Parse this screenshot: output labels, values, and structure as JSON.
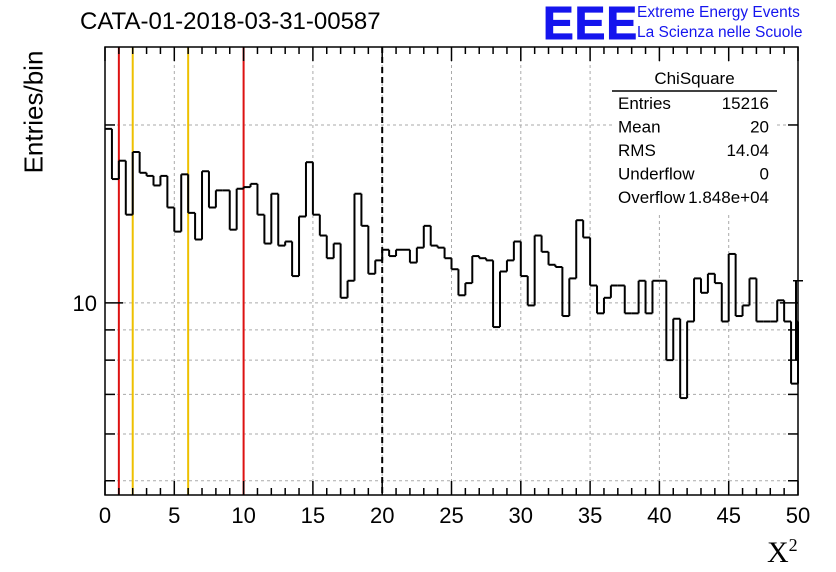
{
  "header": {
    "run_title": "CATA-01-2018-03-31-00587",
    "logo_text": "EEE",
    "logo_line1": "Extreme Energy Events",
    "logo_line2": "La Scienza nelle Scuole",
    "logo_color": "#1515ee"
  },
  "stats_box": {
    "title": "ChiSquare",
    "rows": [
      {
        "label": "Entries",
        "value": "15216"
      },
      {
        "label": "Mean",
        "value": "20"
      },
      {
        "label": "RMS",
        "value": "14.04"
      },
      {
        "label": "Underflow",
        "value": "0"
      },
      {
        "label": "Overflow",
        "value": "1.848e+04"
      }
    ]
  },
  "chart_data": {
    "type": "histogram",
    "ylabel": "Entries/bin",
    "xlabel": "X",
    "xlabel_superscript": "2",
    "xlim": [
      0,
      50
    ],
    "ylim": [
      4.73,
      27.1
    ],
    "log_y": true,
    "grid": true,
    "bin_width": 0.5,
    "x_ticks": [
      0,
      5,
      10,
      15,
      20,
      25,
      30,
      35,
      40,
      45,
      50
    ],
    "y_tick_labels": [
      {
        "value": 10,
        "label": "10"
      }
    ],
    "values": [
      19.7,
      16.2,
      17.4,
      14.1,
      18.0,
      16.6,
      16.4,
      15.8,
      16.4,
      14.5,
      13.2,
      16.5,
      14.2,
      12.8,
      16.7,
      14.5,
      15.5,
      15.5,
      13.3,
      15.6,
      15.7,
      15.9,
      14.1,
      12.6,
      15.3,
      12.5,
      12.7,
      11.1,
      14.0,
      17.3,
      14.1,
      13.0,
      11.9,
      12.6,
      10.2,
      10.9,
      15.3,
      13.5,
      11.2,
      11.8,
      12.3,
      12.0,
      12.3,
      12.3,
      11.7,
      12.4,
      13.5,
      12.5,
      12.4,
      11.9,
      11.4,
      10.3,
      10.8,
      12.0,
      11.9,
      11.8,
      9.1,
      11.3,
      11.8,
      12.7,
      11.1,
      9.9,
      13.0,
      12.2,
      11.6,
      11.5,
      9.5,
      11.0,
      13.8,
      12.9,
      10.7,
      9.6,
      10.2,
      10.7,
      10.7,
      9.6,
      9.6,
      10.9,
      9.6,
      10.9,
      10.9,
      8.0,
      9.4,
      6.9,
      9.3,
      11.0,
      10.4,
      11.2,
      10.8,
      9.3,
      12.1,
      9.5,
      9.9,
      11.0,
      9.3,
      9.3,
      9.3,
      10.1,
      9.3,
      7.3
    ],
    "overflow_bin_value": 9.3,
    "reference_lines": [
      {
        "x": 1,
        "color": "#dd1111",
        "style": "solid"
      },
      {
        "x": 2,
        "color": "#eec000",
        "style": "solid"
      },
      {
        "x": 6,
        "color": "#eec000",
        "style": "solid"
      },
      {
        "x": 10,
        "color": "#dd1111",
        "style": "solid"
      },
      {
        "x": 20,
        "color": "#000000",
        "style": "dashed"
      }
    ]
  }
}
